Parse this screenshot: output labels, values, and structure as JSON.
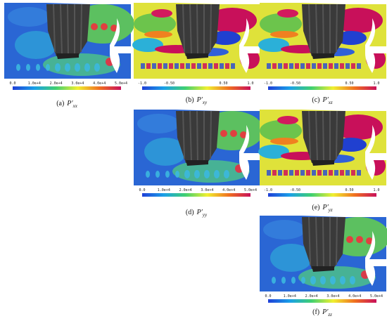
{
  "panels": [
    {
      "label": "(a)",
      "symbol": "P′",
      "subscript": "xx",
      "colorbar_ticks": [
        "0.0",
        "1.0e+4",
        "2.0e+4",
        "3.0e+4",
        "4.0e+4",
        "5.0e+4"
      ]
    },
    {
      "label": "(b)",
      "symbol": "P′",
      "subscript": "xy",
      "colorbar_ticks": [
        "-1.0",
        "-0.50",
        "0.50",
        "1.0"
      ]
    },
    {
      "label": "(c)",
      "symbol": "P′",
      "subscript": "xz",
      "colorbar_ticks": [
        "-1.0",
        "-0.50",
        "0.50",
        "1.0"
      ]
    },
    {
      "label": "(d)",
      "symbol": "P′",
      "subscript": "yy",
      "colorbar_ticks": [
        "0.0",
        "1.0e+4",
        "2.0e+4",
        "3.0e+4",
        "4.0e+4",
        "5.0e+4"
      ]
    },
    {
      "label": "(e)",
      "symbol": "P′",
      "subscript": "yz",
      "colorbar_ticks": [
        "-1.0",
        "-0.50",
        "0.50",
        "1.0"
      ]
    },
    {
      "label": "(f)",
      "symbol": "P′",
      "subscript": "zz",
      "colorbar_ticks": [
        "0.0",
        "1.0e+4",
        "2.0e+4",
        "3.0e+4",
        "4.0e+4",
        "5.0e+4"
      ]
    }
  ]
}
